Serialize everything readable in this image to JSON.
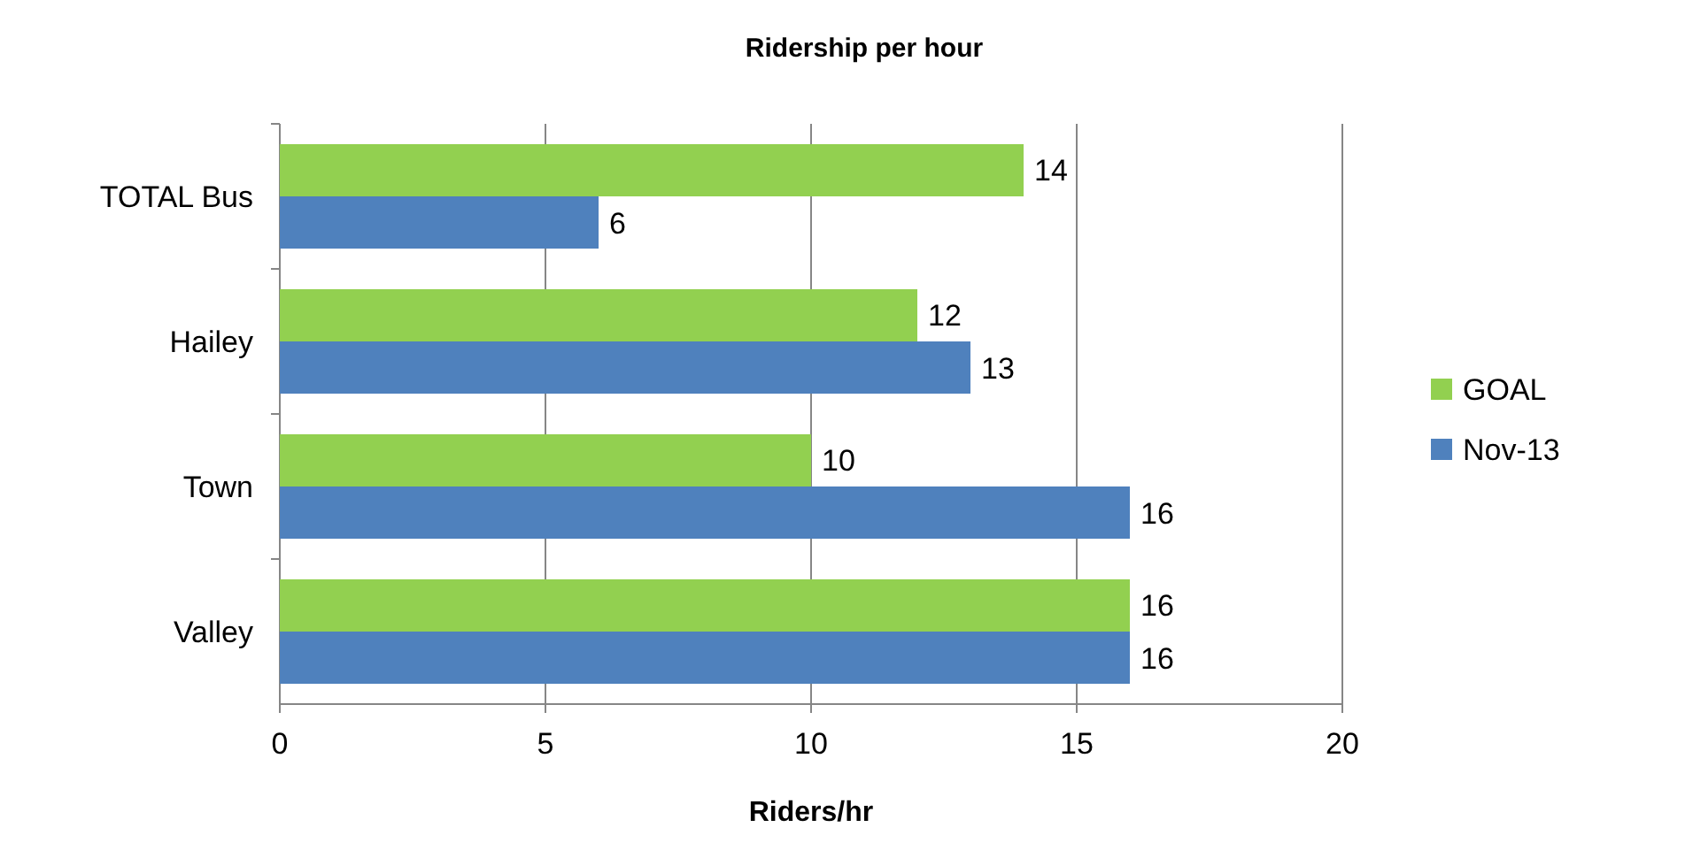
{
  "chart_data": {
    "type": "bar",
    "orientation": "horizontal",
    "title": "Ridership per hour",
    "xlabel": "Riders/hr",
    "categories": [
      "TOTAL Bus",
      "Hailey",
      "Town",
      "Valley"
    ],
    "series": [
      {
        "name": "GOAL",
        "color": "#92d050",
        "values": [
          14,
          12,
          10,
          16
        ]
      },
      {
        "name": "Nov-13",
        "color": "#4f81bd",
        "values": [
          6,
          13,
          16,
          16
        ]
      }
    ],
    "xlim": [
      0,
      20
    ],
    "xticks": [
      0,
      5,
      10,
      15,
      20
    ],
    "grid": "x",
    "legend": "right",
    "data_labels": true
  }
}
